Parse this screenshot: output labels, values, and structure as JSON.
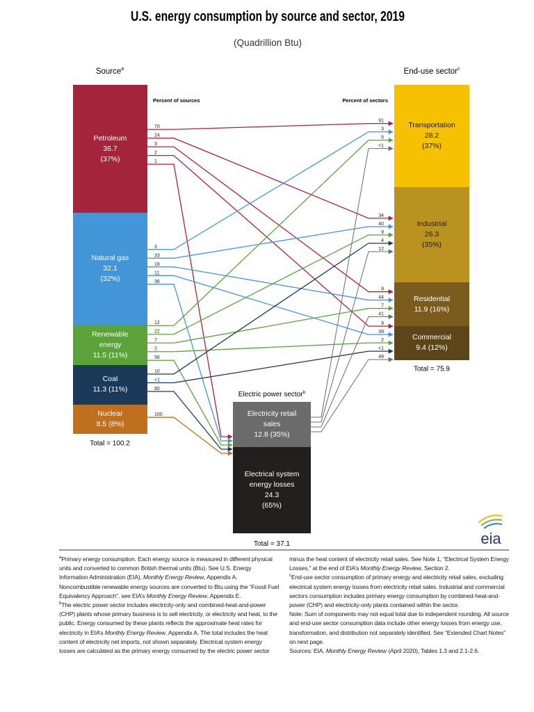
{
  "title": "U.S. energy consumption by source and sector, 2019",
  "subtitle": "(Quadrillion Btu)",
  "sources": {
    "header": "Source",
    "marker": "a",
    "percent_header": "Percent of sources",
    "total": "Total = 100.2",
    "items": [
      {
        "name": "Petroleum",
        "value": 36.7,
        "share": "(37%)",
        "color": "#a3243b",
        "flows": [
          70,
          24,
          3,
          2,
          1
        ]
      },
      {
        "name": "Natural gas",
        "value": 32.1,
        "share": "(32%)",
        "color": "#4295d6",
        "flows": [
          3,
          33,
          16,
          11,
          36
        ]
      },
      {
        "name": "Renewable energy",
        "value": 11.5,
        "share": "(11%)",
        "color": "#5ba23b",
        "flows": [
          12,
          22,
          7,
          2,
          56
        ]
      },
      {
        "name": "Coal",
        "value": 11.3,
        "share": "(11%)",
        "color": "#1b3a5a",
        "flows": [
          10,
          "<1",
          90
        ]
      },
      {
        "name": "Nuclear",
        "value": 8.5,
        "share": "(8%)",
        "color": "#c06f1c",
        "flows": [
          100
        ]
      }
    ]
  },
  "sectors": {
    "header": "End-use sector",
    "marker": "c",
    "percent_header": "Percent of sectors",
    "total": "Total = 75.9",
    "items": [
      {
        "name": "Transportation",
        "value": 28.2,
        "share": "(37%)",
        "color": "#f6c100",
        "text_color": "#1a1a1a",
        "flows": [
          91,
          3,
          5,
          "<1"
        ]
      },
      {
        "name": "Industrial",
        "value": 26.3,
        "share": "(35%)",
        "color": "#b9921f",
        "text_color": "#1a1a1a",
        "flows": [
          34,
          40,
          9,
          4,
          12
        ]
      },
      {
        "name": "Residential",
        "value": 11.9,
        "share": "(16%)",
        "color": "#7b5c1d",
        "text_color": "#ffffff",
        "flows": [
          8,
          44,
          7,
          41
        ]
      },
      {
        "name": "Commercial",
        "value": 9.4,
        "share": "(12%)",
        "color": "#5c4519",
        "text_color": "#ffffff",
        "flows": [
          9,
          39,
          2,
          "<1",
          49
        ]
      }
    ]
  },
  "electric": {
    "header": "Electric power sector",
    "marker": "b",
    "total": "Total = 37.1",
    "retail": {
      "name": "Electricity retail sales",
      "value": 12.8,
      "share": "(35%)",
      "color": "#6b6b6b"
    },
    "losses": {
      "name": "Electrical system energy losses",
      "value": 24.3,
      "share": "(65%)",
      "color": "#231f1d"
    }
  },
  "logo": "eia",
  "notes": [
    {
      "marker": "a",
      "parts": [
        "Primary energy consumption. Each energy source is measured in different physical units and converted to common British thermal units (Btu). See U.S. Energy Information Administration (EIA), ",
        {
          "italic": "Monthly Energy Review"
        },
        ", Appendix A. Noncombustible renewable energy sources are converted to Btu using the “Fossil Fuel Equivalency Approach”, see EIA’s ",
        {
          "italic": "Monthly Energy Review"
        },
        ", Appendix E."
      ]
    },
    {
      "marker": "b",
      "parts": [
        "The electric power sector includes electricity-only and combined-heat-and-power (CHP) plants whose primary business is to sell electricity, or electricity and heat, to the public. Energy consumed by these plants reflects the approximate heat rates for electricity in EIA’s ",
        {
          "italic": "Monthly Energy Review"
        },
        ", Appendix A. The total includes the heat content of electricity net imports, not shown separately. Electrical system energy losses are calculated as the primary energy consumed by the electric power sector minus the heat content of electricity retail sales. See Note 1, “Electrical System Energy Losses,” at the end of EIA’s ",
        {
          "italic": "Monthly Energy Review"
        },
        ", Section 2."
      ]
    },
    {
      "marker": "c",
      "parts": [
        "End-use sector consumption of primary energy and electricity retail sales, excluding electrical system energy losses from electricity retail sales. Industrial and commercial sectors consumption includes primary energy consumption by combined-heat-and-power (CHP) and electricity-only plants contained within the sector."
      ]
    },
    {
      "parts": [
        "Note: Sum of components may not equal total due to independent rounding. All source and end-use sector consumption data include other energy losses from energy use, transformation, and distribution not separately identified. See “Extended Chart Notes” on next page."
      ]
    },
    {
      "parts": [
        "Sources: EIA, ",
        {
          "italic": "Monthly Energy Review"
        },
        " (April 2020), Tables 1.3 and 2.1-2.6."
      ]
    }
  ]
}
